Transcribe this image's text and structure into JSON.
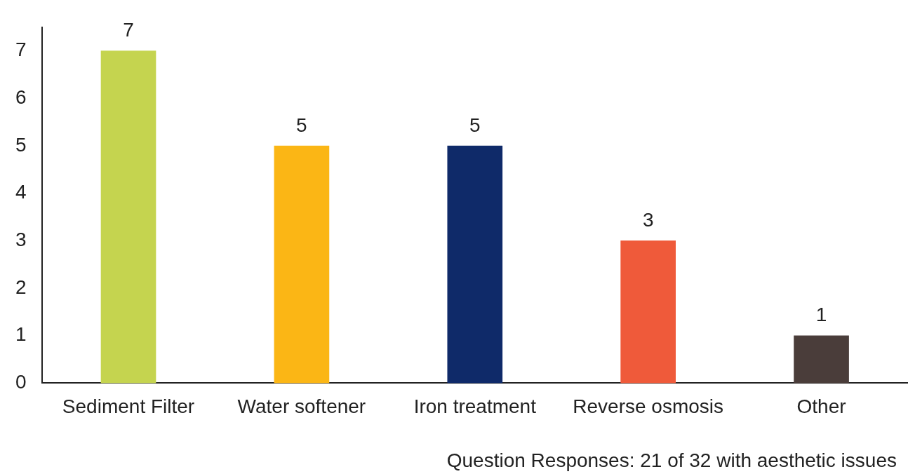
{
  "chart_data": {
    "type": "bar",
    "categories": [
      "Sediment Filter",
      "Water softener",
      "Iron treatment",
      "Reverse osmosis",
      "Other"
    ],
    "values": [
      7,
      5,
      5,
      3,
      1
    ],
    "colors": [
      "#c5d44f",
      "#fbb615",
      "#0f2a69",
      "#ef5a3a",
      "#4a3d3a"
    ],
    "ylim": [
      0,
      7.5
    ],
    "yticks": [
      0,
      1,
      2,
      3,
      4,
      5,
      6,
      7
    ],
    "grid": false,
    "legend": false,
    "data_labels": true,
    "annotations": [
      "Question Responses: 21 of 32 with aesthetic issues"
    ]
  }
}
